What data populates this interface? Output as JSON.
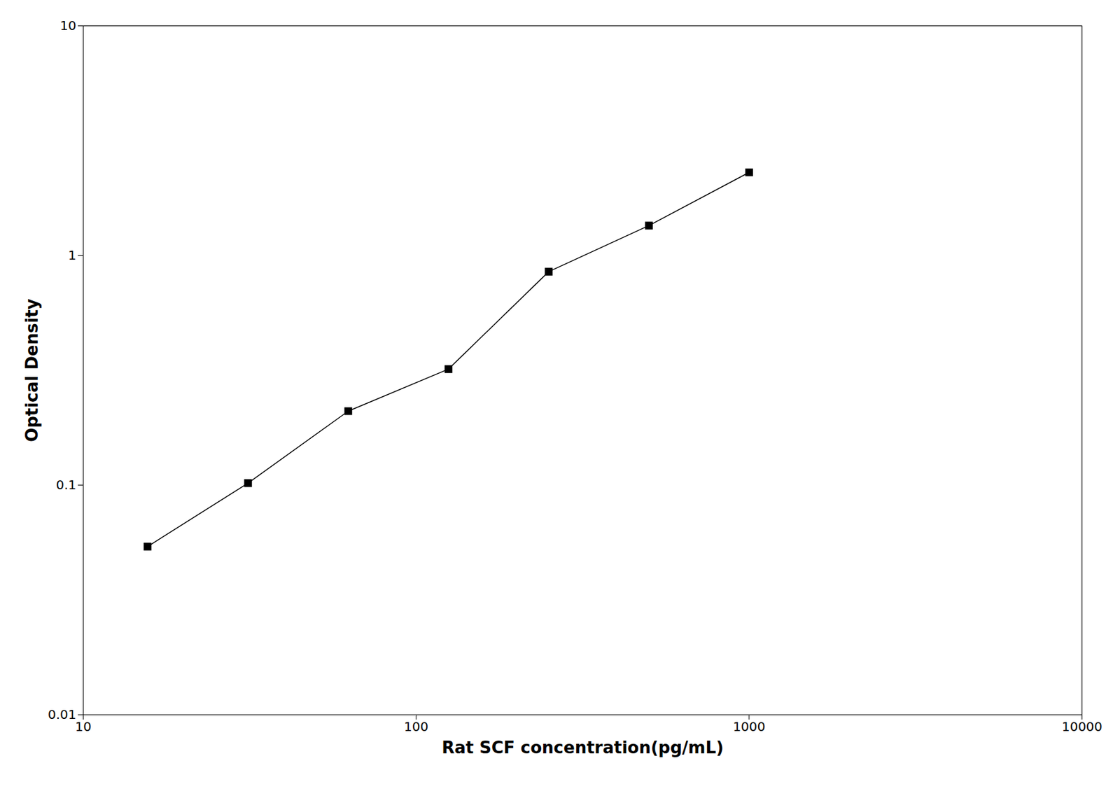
{
  "chart_data": {
    "type": "line",
    "x": [
      15.6,
      31.25,
      62.5,
      125,
      250,
      500,
      1000
    ],
    "values": [
      0.054,
      0.102,
      0.21,
      0.32,
      0.85,
      1.35,
      2.3
    ],
    "xlabel": "Rat SCF concentration(pg/mL)",
    "ylabel": "Optical Density",
    "xlim": [
      10,
      10000
    ],
    "ylim": [
      0.01,
      10
    ],
    "xticks": [
      10,
      100,
      1000,
      10000
    ],
    "yticks": [
      0.01,
      0.1,
      1,
      10
    ],
    "log": true,
    "color": "#000000",
    "marker": "square",
    "grid": false
  }
}
